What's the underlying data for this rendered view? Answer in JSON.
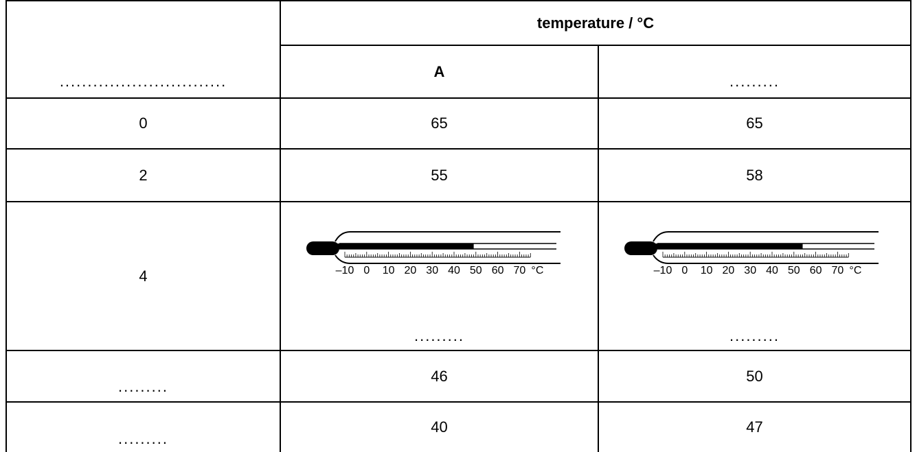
{
  "table": {
    "header_group": "temperature / °C",
    "row_label_header": "..............................",
    "col_a_header": "A",
    "col_b_header": ".........",
    "rows": [
      {
        "label": "0",
        "a": "65",
        "b": "65"
      },
      {
        "label": "2",
        "a": "55",
        "b": "58"
      },
      {
        "label": "4",
        "a": ".........",
        "b": "........."
      },
      {
        "label": ".........",
        "a": "46",
        "b": "50"
      },
      {
        "label": ".........",
        "a": "40",
        "b": "47"
      }
    ]
  },
  "thermometers": {
    "scale_labels": [
      "–10",
      "0",
      "10",
      "20",
      "30",
      "40",
      "50",
      "60",
      "70"
    ],
    "unit": "°C",
    "a_reading": 49,
    "b_reading": 54
  }
}
